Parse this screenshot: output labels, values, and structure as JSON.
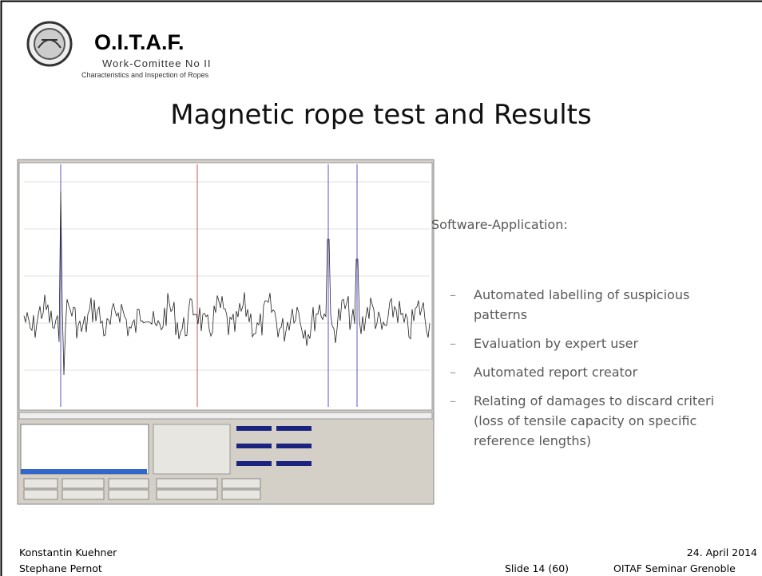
{
  "header": {
    "org": "O.I.T.A.F.",
    "committee": "Work-Comittee No II",
    "subtitle": "Characteristics and Inspection of Ropes"
  },
  "title": "Magnetic rope test and Results",
  "content": {
    "heading": "Software-Application:",
    "bullets": [
      [
        "Automated labelling of suspicious",
        "patterns"
      ],
      [
        "Evaluation by expert user"
      ],
      [
        "Automated report creator"
      ],
      [
        "Relating of damages to discard criteri",
        "(loss of tensile capacity on specific",
        "reference lengths)"
      ]
    ]
  },
  "footer": {
    "authors": [
      "Konstantin Kuehner",
      "Stephane Pernot"
    ],
    "slide": "Slide 14 (60)",
    "date": "24. April 2014",
    "event": "OITAF Seminar Grenoble"
  }
}
